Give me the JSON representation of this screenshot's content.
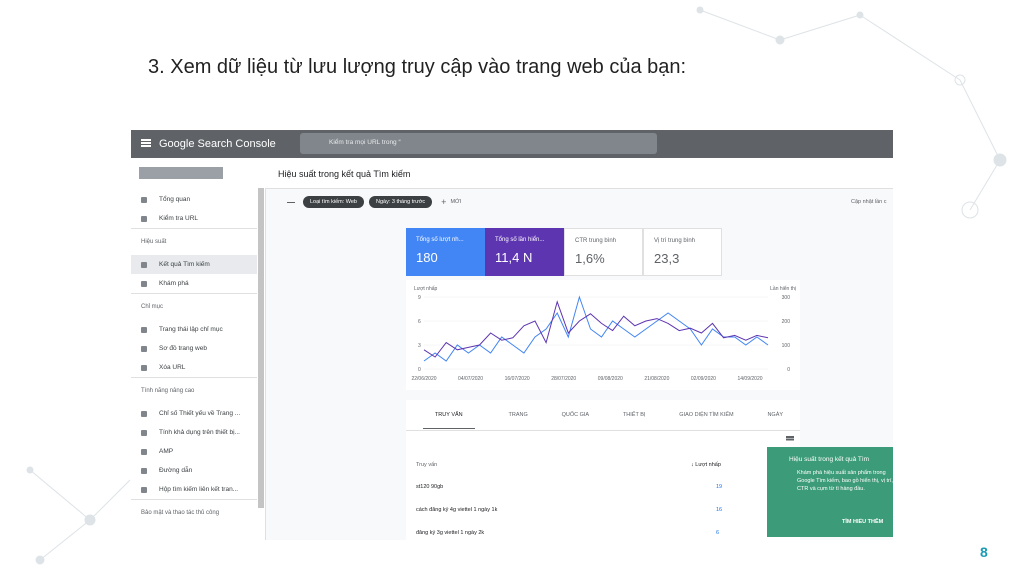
{
  "slide": {
    "title": "3. Xem dữ liệu từ lưu lượng truy cập vào trang web của bạn:",
    "page_number": "8"
  },
  "app": {
    "brand": "Google Search Console",
    "search_placeholder": "Kiểm tra mọi URL trong “",
    "page_title": "Hiệu suất trong kết quả Tìm kiếm",
    "updated": "Cập nhật lần c"
  },
  "filters": {
    "chips": [
      "Loại tìm kiếm: Web",
      "Ngày: 3 tháng trước"
    ],
    "new": "MỚI"
  },
  "sidebar": [
    {
      "label": "Tổng quan"
    },
    {
      "label": "Kiểm tra URL"
    },
    {
      "section": "Hiệu suất"
    },
    {
      "label": "Kết quả Tìm kiếm",
      "selected": true
    },
    {
      "label": "Khám phá"
    },
    {
      "section": "Chỉ mục"
    },
    {
      "label": "Trang thái lập chỉ mục"
    },
    {
      "label": "Sơ đồ trang web"
    },
    {
      "label": "Xóa URL"
    },
    {
      "section": "Tính năng nâng cao"
    },
    {
      "label": "Chỉ số Thiết yếu về Trang ..."
    },
    {
      "label": "Tính khả dụng trên thiết bị..."
    },
    {
      "label": "AMP"
    },
    {
      "label": "Đường dẫn"
    },
    {
      "label": "Hộp tìm kiếm liên kết tran..."
    },
    {
      "section": "Bảo mật và thao tác thủ công"
    }
  ],
  "cards": [
    {
      "label": "Tổng số lượt nh...",
      "value": "180",
      "color": "#4285f4",
      "active": true
    },
    {
      "label": "Tổng số lần hiển...",
      "value": "11,4 N",
      "color": "#5e35b1",
      "active": true
    },
    {
      "label": "CTR trung bình",
      "value": "1,6%",
      "active": false
    },
    {
      "label": "Vị trí trung bình",
      "value": "23,3",
      "active": false
    }
  ],
  "chart": {
    "type": "line",
    "left_axis_label": "Lượt nhấp",
    "right_axis_label": "Lần hiển thị",
    "categories": [
      "22/06/2020",
      "04/07/2020",
      "16/07/2020",
      "28/07/2020",
      "09/08/2020",
      "21/08/2020",
      "02/09/2020",
      "14/09/2020"
    ],
    "ylim": [
      0,
      9
    ],
    "yticks": [
      0,
      3,
      6,
      9
    ],
    "y2lim": [
      0,
      300
    ],
    "y2ticks": [
      0,
      100,
      200,
      300
    ],
    "series": [
      {
        "name": "Lượt nhấp",
        "color": "#4285f4",
        "values": [
          1,
          2,
          1,
          3,
          2,
          3,
          2,
          4,
          3,
          2,
          4,
          5,
          7,
          4,
          9,
          5,
          4,
          6,
          5,
          4,
          5,
          6,
          7,
          6,
          5,
          3,
          5,
          4,
          4,
          3,
          4,
          3
        ]
      },
      {
        "name": "Lần hiển thị",
        "color": "#5e35b1",
        "axis": "y2",
        "values": [
          80,
          50,
          110,
          80,
          90,
          100,
          150,
          120,
          130,
          180,
          200,
          110,
          280,
          150,
          200,
          230,
          190,
          160,
          220,
          180,
          200,
          210,
          190,
          160,
          170,
          150,
          190,
          130,
          140,
          120,
          140,
          130
        ]
      }
    ]
  },
  "tabs": [
    "TRUY VẤN",
    "TRANG",
    "QUỐC GIA",
    "THIẾT BỊ",
    "GIAO DIỆN TÌM KIẾM",
    "NGÀY"
  ],
  "table": {
    "headers": [
      "Truy vấn",
      "Lượt nhấp"
    ],
    "rows": [
      [
        "st120 90gb",
        "19"
      ],
      [
        "cách đăng ký 4g viettel 1 ngày 1k",
        "16"
      ],
      [
        "đăng ký 3g viettel 1 ngày 2k",
        "6"
      ]
    ]
  },
  "popup": {
    "title": "Hiệu suất trong kết quả Tìm",
    "body": "Khám phá hiệu suất sản phẩm trong Google Tìm kiếm, bao gồ hiển thị, vị trí, CTR và cụm từ tì hàng đầu.",
    "button": "TÌM HIỂU THÊM"
  }
}
